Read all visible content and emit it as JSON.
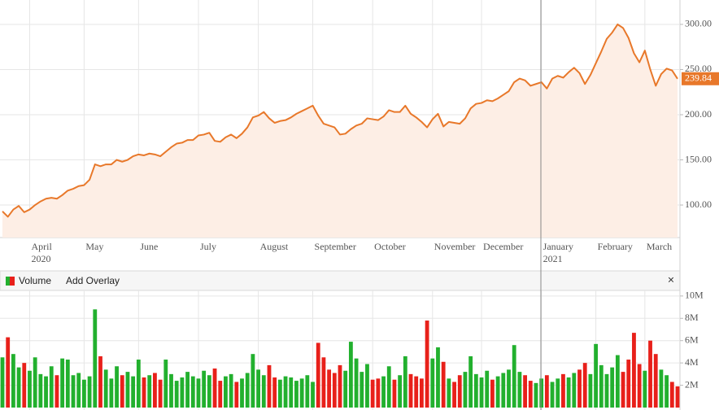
{
  "chart_data": [
    {
      "type": "line",
      "categories": [
        null,
        null,
        null,
        null,
        null,
        [
          "April",
          "2020"
        ],
        null,
        null,
        null,
        null,
        null,
        null,
        null,
        null,
        null,
        "May",
        null,
        null,
        null,
        null,
        null,
        null,
        null,
        null,
        null,
        "June",
        null,
        null,
        null,
        null,
        null,
        null,
        null,
        null,
        null,
        null,
        "July",
        null,
        null,
        null,
        null,
        null,
        null,
        null,
        null,
        null,
        null,
        "August",
        null,
        null,
        null,
        null,
        null,
        null,
        null,
        null,
        null,
        "September",
        null,
        null,
        null,
        null,
        null,
        null,
        null,
        null,
        null,
        null,
        "October",
        null,
        null,
        null,
        null,
        null,
        null,
        null,
        null,
        null,
        null,
        "November",
        null,
        null,
        null,
        null,
        null,
        null,
        null,
        null,
        "December",
        null,
        null,
        null,
        null,
        null,
        null,
        null,
        null,
        null,
        null,
        [
          "January",
          "2021"
        ],
        null,
        null,
        null,
        null,
        null,
        null,
        null,
        null,
        null,
        "February",
        null,
        null,
        null,
        null,
        null,
        null,
        null,
        null,
        "March",
        null,
        null,
        null,
        null,
        null,
        null
      ],
      "series": [
        {
          "color": "#e8782a",
          "fill": "#fdeee5",
          "values": [
            93,
            87,
            95,
            99,
            92,
            95,
            100,
            104,
            107,
            108,
            107,
            111,
            116,
            118,
            121,
            122,
            128,
            145,
            143,
            145,
            145,
            150,
            148,
            150,
            154,
            156,
            155,
            157,
            156,
            154,
            159,
            164,
            168,
            169,
            172,
            172,
            177,
            178,
            180,
            171,
            170,
            175,
            178,
            174,
            179,
            186,
            197,
            199,
            203,
            196,
            191,
            193,
            194,
            197,
            201,
            204,
            207,
            210,
            199,
            190,
            188,
            186,
            178,
            179,
            184,
            188,
            190,
            196,
            195,
            194,
            198,
            205,
            203,
            203,
            210,
            201,
            197,
            192,
            186,
            195,
            201,
            187,
            192,
            191,
            190,
            196,
            207,
            212,
            213,
            216,
            215,
            218,
            222,
            226,
            236,
            240,
            238,
            232,
            234,
            236,
            229,
            240,
            243,
            241,
            247,
            252,
            246,
            234,
            244,
            257,
            270,
            284,
            291,
            300,
            296,
            285,
            268,
            258,
            271,
            250,
            232,
            245,
            251,
            249,
            239.84
          ]
        }
      ],
      "ylim": [
        64,
        327
      ],
      "yticks": [
        {
          "value": 100,
          "label": "100.00"
        },
        {
          "value": 150,
          "label": "150.00"
        },
        {
          "value": 200,
          "label": "200.00"
        },
        {
          "value": 250,
          "label": "250.00"
        },
        {
          "value": 300,
          "label": "300.00"
        }
      ],
      "grid": true
    },
    {
      "type": "bar",
      "title": "Volume",
      "menu": "Add Overlay",
      "close": "×",
      "up_color": "#22b02e",
      "down_color": "#e8201a",
      "values": [
        4500000,
        6300000,
        4800000,
        3600000,
        4000000,
        3300000,
        4500000,
        3000000,
        2800000,
        3700000,
        2900000,
        4400000,
        4300000,
        2900000,
        3100000,
        2500000,
        2800000,
        8800000,
        4600000,
        3400000,
        2600000,
        3700000,
        2900000,
        3200000,
        2800000,
        4300000,
        2700000,
        2900000,
        3100000,
        2500000,
        4300000,
        3000000,
        2400000,
        2700000,
        3200000,
        2800000,
        2600000,
        3300000,
        2900000,
        3500000,
        2400000,
        2800000,
        3000000,
        2300000,
        2600000,
        3100000,
        4800000,
        3400000,
        2900000,
        3800000,
        2700000,
        2500000,
        2800000,
        2700000,
        2400000,
        2600000,
        2900000,
        2300000,
        5800000,
        4500000,
        3400000,
        3100000,
        3800000,
        3300000,
        5900000,
        4400000,
        3200000,
        3900000,
        2500000,
        2600000,
        2800000,
        3700000,
        2500000,
        2900000,
        4600000,
        3000000,
        2800000,
        2600000,
        7800000,
        4400000,
        5400000,
        4100000,
        2600000,
        2300000,
        2900000,
        3200000,
        4600000,
        3000000,
        2700000,
        3300000,
        2500000,
        2800000,
        3100000,
        3400000,
        5600000,
        3200000,
        2900000,
        2400000,
        2200000,
        2600000,
        2900000,
        2300000,
        2600000,
        3000000,
        2700000,
        3100000,
        3400000,
        4000000,
        3000000,
        5700000,
        3800000,
        3000000,
        3600000,
        4700000,
        3200000,
        4300000,
        6700000,
        3900000,
        3300000,
        6000000,
        4800000,
        3400000,
        2900000,
        2300000,
        1900000
      ],
      "ylim": [
        0,
        10500000
      ],
      "yticks": [
        {
          "value": 2000000,
          "label": "2M"
        },
        {
          "value": 4000000,
          "label": "4M"
        },
        {
          "value": 6000000,
          "label": "6M"
        },
        {
          "value": 8000000,
          "label": "8M"
        },
        {
          "value": 10000000,
          "label": "10M"
        }
      ],
      "grid": true
    }
  ]
}
